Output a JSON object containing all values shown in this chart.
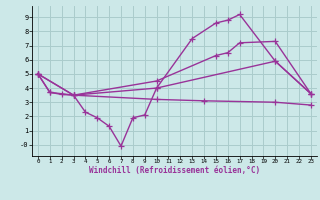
{
  "background_color": "#cce8e8",
  "grid_color": "#aacccc",
  "line_color": "#993399",
  "marker": "+",
  "markersize": 4,
  "linewidth": 1.0,
  "xlabel": "Windchill (Refroidissement éolien,°C)",
  "xlim": [
    -0.5,
    23.5
  ],
  "ylim": [
    -0.8,
    9.8
  ],
  "yticks": [
    0,
    1,
    2,
    3,
    4,
    5,
    6,
    7,
    8,
    9
  ],
  "ytick_labels": [
    "-0",
    "1",
    "2",
    "3",
    "4",
    "5",
    "6",
    "7",
    "8",
    "9"
  ],
  "xticks": [
    0,
    1,
    2,
    3,
    4,
    5,
    6,
    7,
    8,
    9,
    10,
    11,
    12,
    13,
    14,
    15,
    16,
    17,
    18,
    19,
    20,
    21,
    22,
    23
  ],
  "lines": [
    {
      "x": [
        0,
        1,
        2,
        3,
        10,
        13,
        15,
        16,
        17,
        20,
        23
      ],
      "y": [
        5,
        3.7,
        3.55,
        3.5,
        4.0,
        7.5,
        8.6,
        8.8,
        9.2,
        5.9,
        3.6
      ]
    },
    {
      "x": [
        0,
        1,
        3,
        4,
        5,
        6,
        7,
        8,
        9,
        10,
        20,
        23
      ],
      "y": [
        5,
        3.7,
        3.5,
        2.3,
        1.9,
        1.3,
        -0.1,
        1.9,
        2.1,
        4.0,
        5.9,
        3.6
      ]
    },
    {
      "x": [
        0,
        3,
        10,
        15,
        16,
        17,
        20,
        23
      ],
      "y": [
        5,
        3.5,
        4.5,
        6.3,
        6.5,
        7.2,
        7.3,
        3.6
      ]
    },
    {
      "x": [
        0,
        3,
        10,
        14,
        20,
        23
      ],
      "y": [
        5,
        3.5,
        3.2,
        3.1,
        3.0,
        2.8
      ]
    }
  ]
}
